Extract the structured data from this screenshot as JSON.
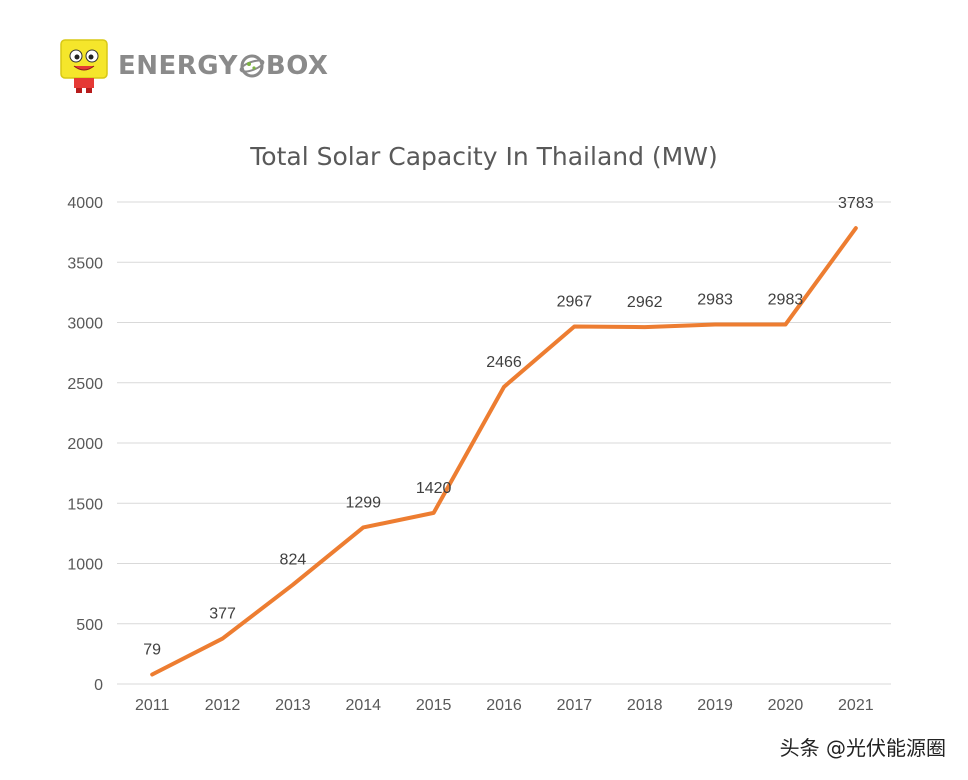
{
  "brand": {
    "name_left": "ENERGY",
    "name_right": "BOX"
  },
  "watermark": "头条 @光伏能源圈",
  "colors": {
    "line": "#ED7D31",
    "grid": "#D9D9D9",
    "axis_text": "#595959",
    "label_text": "#404040",
    "logo_text": "#8A8A8A",
    "mascot": "#F5E62B"
  },
  "chart_data": {
    "type": "line",
    "title": "Total Solar Capacity In Thailand (MW)",
    "x": [
      "2011",
      "2012",
      "2013",
      "2014",
      "2015",
      "2016",
      "2017",
      "2018",
      "2019",
      "2020",
      "2021"
    ],
    "series": [
      {
        "values": [
          79,
          377,
          824,
          1299,
          1420,
          2466,
          2967,
          2962,
          2983,
          2983,
          3783
        ]
      }
    ],
    "ylim": [
      0,
      4000
    ],
    "yticks": [
      0,
      500,
      1000,
      1500,
      2000,
      2500,
      3000,
      3500,
      4000
    ],
    "grid": true,
    "data_labels": true,
    "xlabel": "",
    "ylabel": ""
  }
}
